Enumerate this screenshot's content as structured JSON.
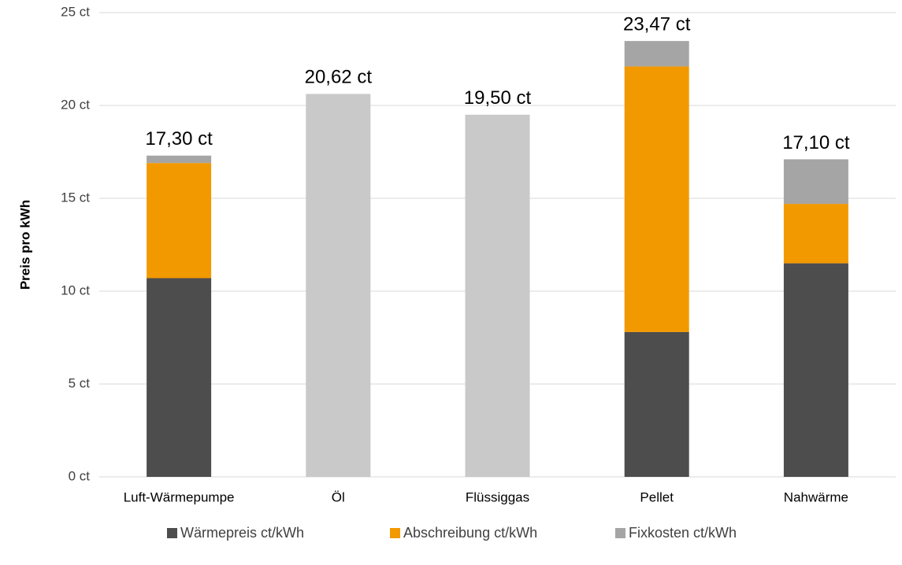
{
  "chart_data": {
    "type": "stacked_bar",
    "ylabel": "Preis pro kWh",
    "categories": [
      "Luft-Wärmepumpe",
      "Öl",
      "Flüssiggas",
      "Pellet",
      "Nahwärme"
    ],
    "series": [
      {
        "name": "Wärmepreis ct/kWh",
        "color": "#4d4d4d",
        "point_colors": [
          "#4d4d4d",
          "#c9c9c9",
          "#c9c9c9",
          "#4d4d4d",
          "#4d4d4d"
        ],
        "values": [
          10.7,
          20.62,
          19.5,
          7.8,
          11.5
        ]
      },
      {
        "name": "Abschreibung ct/kWh",
        "color": "#f29900",
        "values": [
          6.2,
          null,
          null,
          14.3,
          3.2
        ]
      },
      {
        "name": "Fixkosten ct/kWh",
        "color": "#a5a5a5",
        "values": [
          0.4,
          null,
          null,
          1.37,
          2.4
        ]
      }
    ],
    "totals": [
      17.3,
      20.62,
      19.5,
      23.47,
      17.1
    ],
    "total_labels": [
      "17,30 ct",
      "20,62 ct",
      "19,50 ct",
      "23,47 ct",
      "17,10 ct"
    ],
    "ylim": [
      0,
      25
    ],
    "yticks": [
      {
        "value": 0,
        "label": "0 ct"
      },
      {
        "value": 5,
        "label": "5 ct"
      },
      {
        "value": 10,
        "label": "10 ct"
      },
      {
        "value": 15,
        "label": "15 ct"
      },
      {
        "value": 20,
        "label": "20 ct"
      },
      {
        "value": 25,
        "label": "25 ct"
      }
    ],
    "grid": true,
    "legend": "bottom"
  }
}
